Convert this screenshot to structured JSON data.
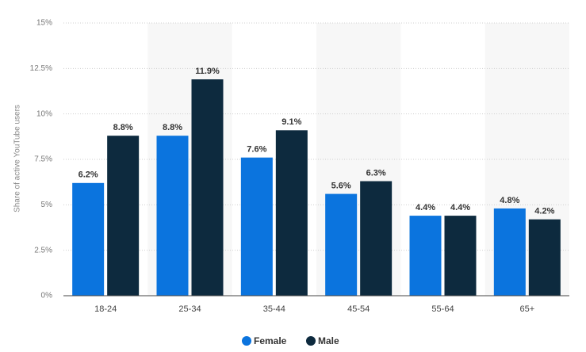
{
  "chart_data": {
    "type": "grouped_bar",
    "y_axis_label": "Share of active YouTube users",
    "categories": [
      "18-24",
      "25-34",
      "35-44",
      "45-54",
      "55-64",
      "65+"
    ],
    "series": [
      {
        "name": "Female",
        "color": "#0b74de",
        "values": [
          6.2,
          8.8,
          7.6,
          5.6,
          4.4,
          4.8
        ],
        "value_labels": [
          "6.2%",
          "8.8%",
          "7.6%",
          "5.6%",
          "4.4%",
          "4.8%"
        ]
      },
      {
        "name": "Male",
        "color": "#0d2a3e",
        "values": [
          8.8,
          11.9,
          9.1,
          6.3,
          4.4,
          4.2
        ],
        "value_labels": [
          "8.8%",
          "11.9%",
          "9.1%",
          "6.3%",
          "4.4%",
          "4.2%"
        ]
      }
    ],
    "ylim": [
      0,
      15
    ],
    "yticks": [
      {
        "value": 0,
        "label": "0%"
      },
      {
        "value": 2.5,
        "label": "2.5%"
      },
      {
        "value": 5,
        "label": "5%"
      },
      {
        "value": 7.5,
        "label": "7.5%"
      },
      {
        "value": 10,
        "label": "10%"
      },
      {
        "value": 12.5,
        "label": "12.5%"
      },
      {
        "value": 15,
        "label": "15%"
      }
    ],
    "grid": true,
    "legend": "bottom"
  }
}
